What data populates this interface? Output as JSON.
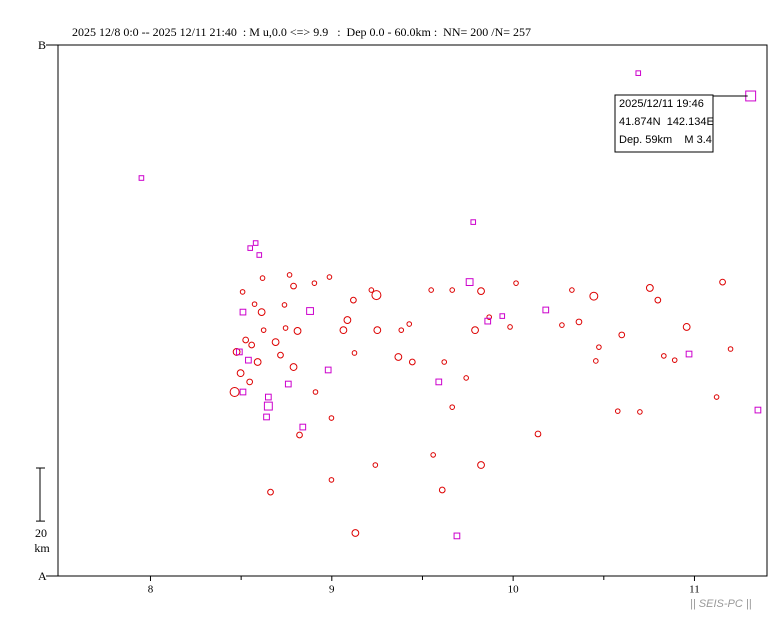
{
  "chart_data": {
    "type": "scatter",
    "title": "2025 12/8 0:0 -- 2025 12/11 21:40  : M u,0.0 <=> 9.9   :  Dep 0.0 - 60.0km :  NN= 200 /N= 257",
    "top_label": "B",
    "bottom_label": "A",
    "scale_bar": {
      "value": 20,
      "unit": "km"
    },
    "watermark": "|| SEIS-PC ||",
    "xlim": [
      7.49,
      11.4
    ],
    "xticks": [
      8,
      9,
      10,
      11
    ],
    "xminorticks": [
      8.5,
      9.5,
      10.5
    ],
    "ylim": [
      0,
      200
    ],
    "series": [
      {
        "marker": "circle",
        "color": "#dd0000",
        "x": [
          8.464,
          8.475,
          8.497,
          8.525,
          8.558,
          8.591,
          8.613,
          8.624,
          8.69,
          8.717,
          8.745,
          8.789,
          8.811,
          8.789,
          8.822,
          8.91,
          8.998,
          9.064,
          9.086,
          9.119,
          9.246,
          9.251,
          9.218,
          9.367,
          9.444,
          9.383,
          9.62,
          9.664,
          9.79,
          9.823,
          9.868,
          9.823,
          9.983,
          10.137,
          10.269,
          10.363,
          10.445,
          10.456,
          10.577,
          10.599,
          10.754,
          10.798,
          10.831,
          10.891,
          10.957,
          11.122,
          11.155,
          11.199,
          9.13,
          8.662,
          8.998,
          9.24,
          9.559,
          9.609,
          9.664,
          9.741,
          8.739,
          8.767,
          8.618,
          8.508,
          8.574,
          8.547,
          8.987,
          8.904,
          9.125,
          9.427,
          9.548,
          10.016,
          10.324,
          10.473,
          10.699
        ],
        "values": [
          69.3,
          84.4,
          76.4,
          88.9,
          87.0,
          80.6,
          99.4,
          92.6,
          88.1,
          83.2,
          93.4,
          109.2,
          92.3,
          78.7,
          53.1,
          69.3,
          59.5,
          92.6,
          96.4,
          103.9,
          105.8,
          92.6,
          107.7,
          82.5,
          80.6,
          92.6,
          80.6,
          107.7,
          92.6,
          107.3,
          97.5,
          41.8,
          93.8,
          53.5,
          94.5,
          95.7,
          105.4,
          81.0,
          62.1,
          90.8,
          108.5,
          103.9,
          82.9,
          81.3,
          93.8,
          67.4,
          110.7,
          85.5,
          16.2,
          31.6,
          36.2,
          41.8,
          45.6,
          32.4,
          63.6,
          74.6,
          102.1,
          113.4,
          112.2,
          107.0,
          102.4,
          73.1,
          112.6,
          110.3,
          84.0,
          94.9,
          107.7,
          110.3,
          107.7,
          86.2,
          61.8
        ],
        "magnitudes": [
          3,
          2,
          2,
          1.5,
          1.5,
          2,
          2,
          1,
          2,
          1.5,
          1,
          1.5,
          2,
          2,
          1.5,
          1,
          1,
          2,
          2,
          1.5,
          3,
          2,
          1,
          2,
          1.5,
          1,
          1,
          1,
          2,
          2,
          1,
          2,
          1,
          1.5,
          1,
          1.5,
          2.5,
          1,
          1,
          1.5,
          2,
          1.5,
          1,
          1,
          2,
          1,
          1.5,
          1,
          2,
          1.5,
          1,
          1,
          1,
          1.5,
          1,
          1,
          1,
          1,
          1,
          1,
          1,
          1.5,
          1,
          1,
          1,
          1,
          1,
          1,
          1,
          1,
          1
        ]
      },
      {
        "marker": "square",
        "color": "#cc00cc",
        "x": [
          7.95,
          10.69,
          11.31,
          9.78,
          8.55,
          8.58,
          8.6,
          8.51,
          8.88,
          9.76,
          10.18,
          9.86,
          9.94,
          10.97,
          11.35,
          9.59,
          8.98,
          8.76,
          8.51,
          8.65,
          8.65,
          8.64,
          8.84,
          9.69,
          8.49,
          8.54
        ],
        "values": [
          149.9,
          189.4,
          180.8,
          133.3,
          123.5,
          125.4,
          120.9,
          99.4,
          99.8,
          110.7,
          100.2,
          96.0,
          97.9,
          83.6,
          62.5,
          73.1,
          77.6,
          72.3,
          69.3,
          67.4,
          64.0,
          59.9,
          56.1,
          15.1,
          84.4,
          81.3
        ],
        "magnitudes": [
          1,
          1,
          3.4,
          1,
          1,
          1,
          1,
          1.5,
          2,
          2,
          1.5,
          1.5,
          1,
          1.5,
          1.5,
          1.5,
          1.5,
          1.5,
          1.5,
          1.5,
          2.5,
          1.5,
          1.5,
          1.5,
          1.5,
          1.5
        ]
      }
    ],
    "annotation": {
      "lines": [
        "2025/12/11 19:46",
        "41.874N  142.134E",
        "Dep. 59km    M 3.4"
      ]
    }
  }
}
